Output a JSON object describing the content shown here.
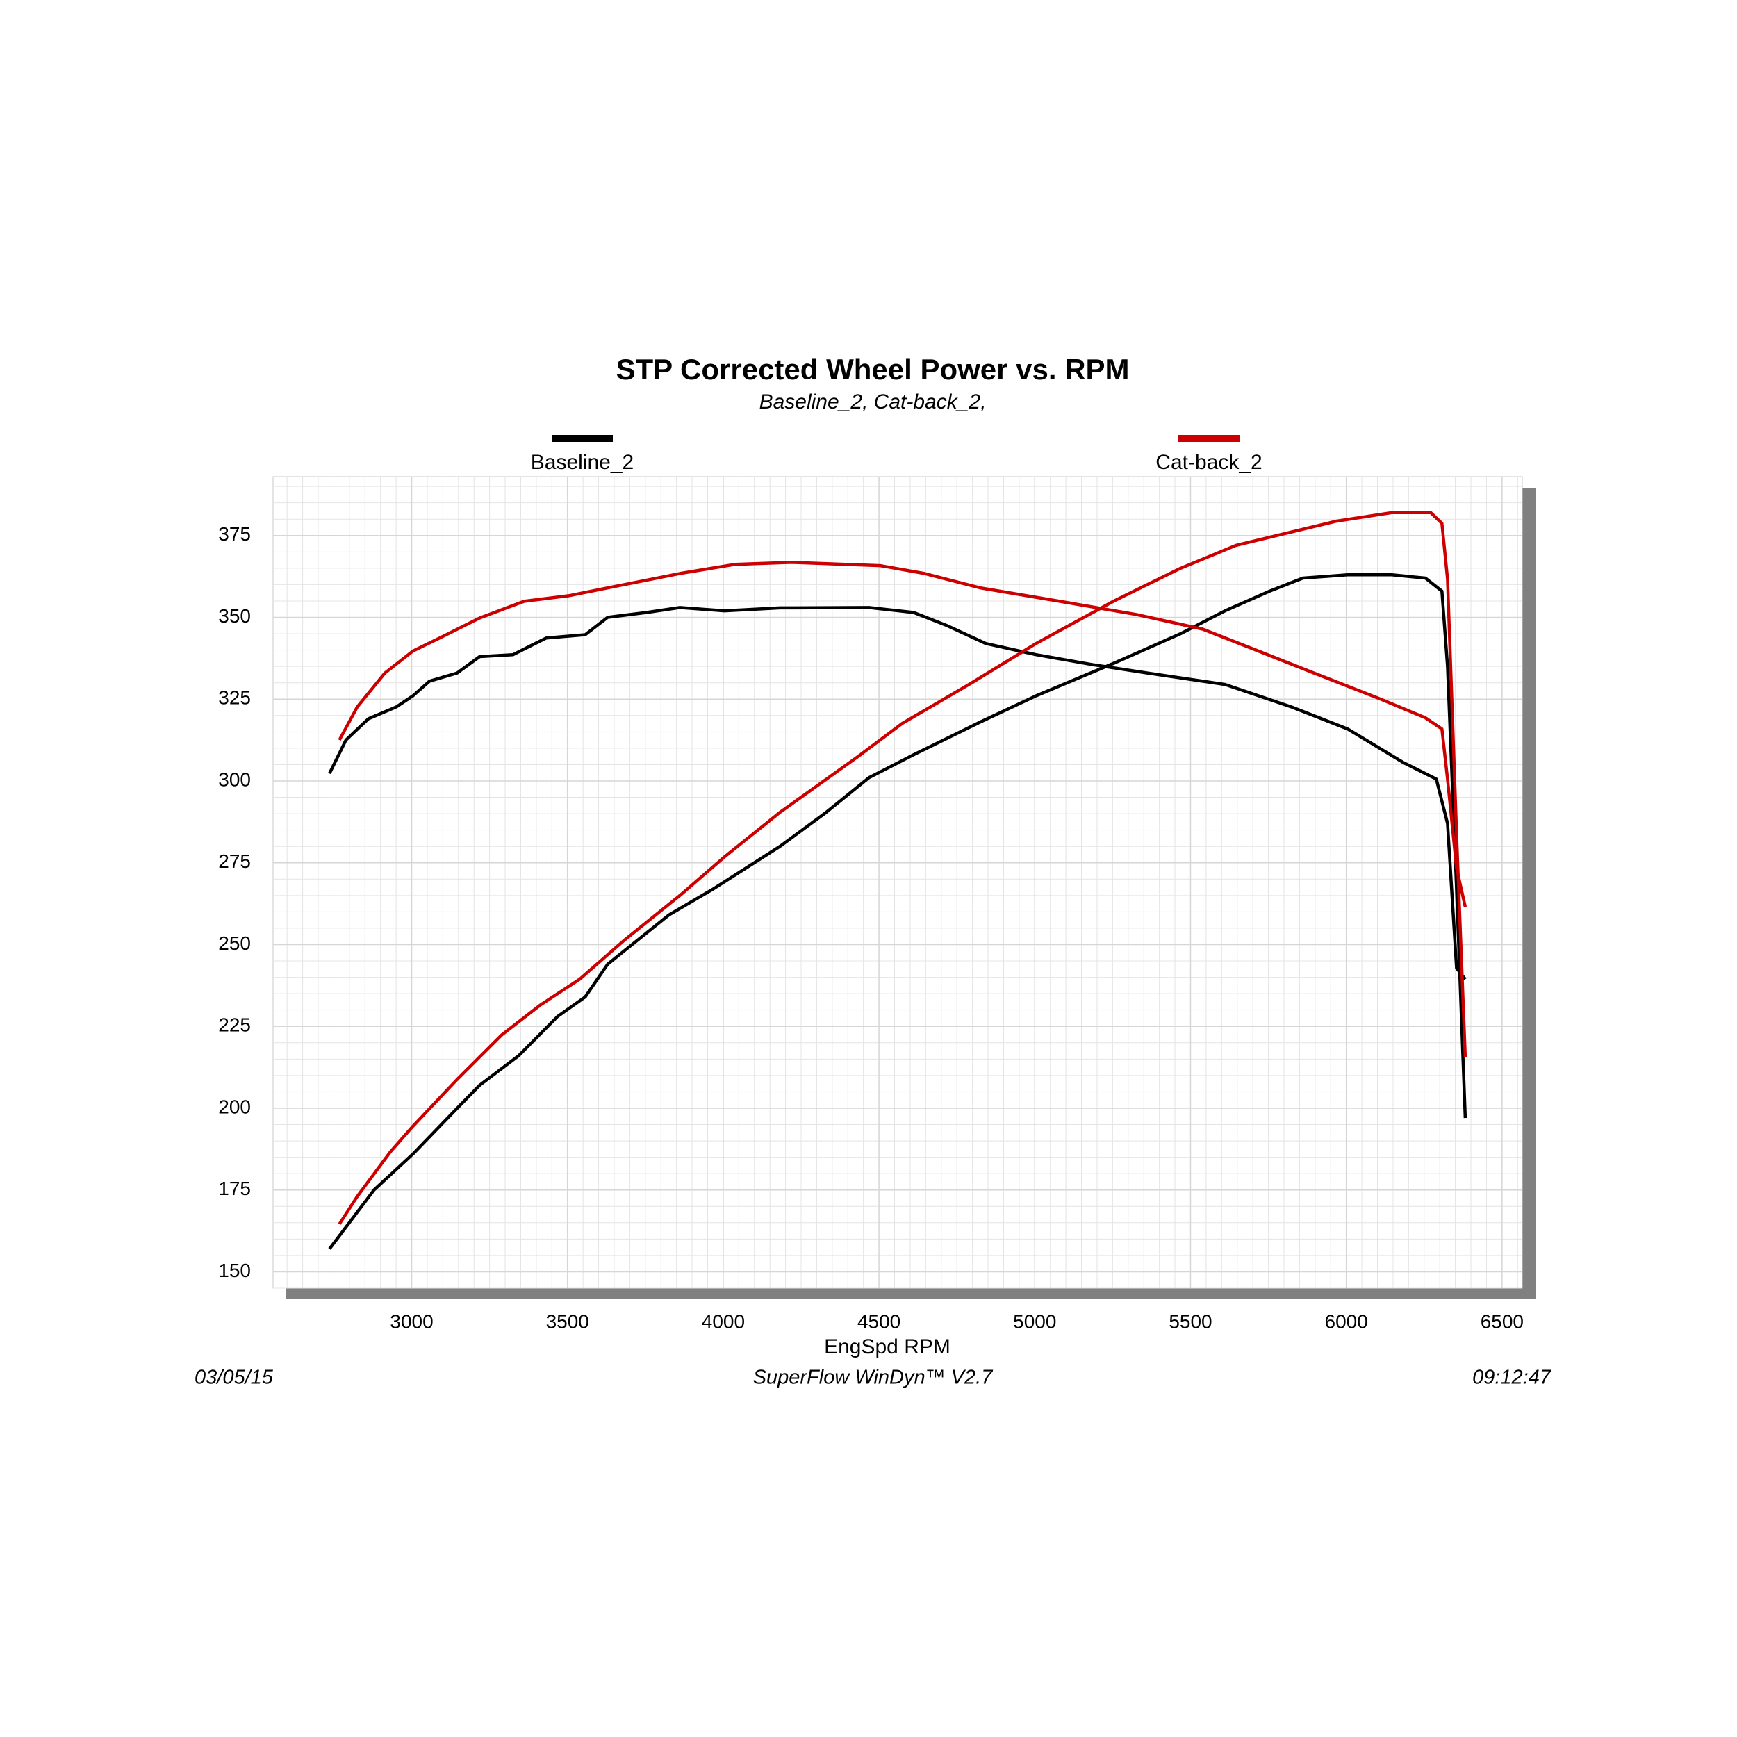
{
  "chart_data": {
    "type": "line",
    "title": "STP Corrected Wheel Power vs. RPM",
    "subtitle": "Baseline_2, Cat-back_2,",
    "x_label": "EngSpd RPM",
    "footer": {
      "date": "03/05/15",
      "software": "SuperFlow WinDyn™ V2.7",
      "time": "09:12:47"
    },
    "xlim": [
      2555,
      6565
    ],
    "ylim": [
      145,
      393
    ],
    "xticks": [
      3000,
      3500,
      4000,
      4500,
      5000,
      5500,
      6000,
      6500
    ],
    "yticks": [
      150,
      175,
      200,
      225,
      250,
      275,
      300,
      325,
      350,
      375
    ],
    "grid": true,
    "legend": "top",
    "series": [
      {
        "name": "Baseline_2",
        "color": "#000000",
        "lines": [
          {
            "x": [
              2736,
              2879,
              3004,
              3146,
              3218,
              3343,
              3468,
              3557,
              3629,
              3825,
              3968,
              4182,
              4325,
              4468,
              4611,
              4825,
              5004,
              5254,
              5468,
              5611,
              5754,
              5861,
              6004,
              6146,
              6254,
              6307,
              6325,
              6354,
              6382
            ],
            "values": [
              157,
              175,
              186,
              200,
              207,
              216,
              228,
              234,
              244,
              259,
              267,
              280,
              290,
              301,
              308,
              318,
              326,
              336,
              345,
              352,
              358,
              362,
              363,
              363,
              362,
              358,
              335,
              267,
              197
            ]
          },
          {
            "x": [
              2736,
              2789,
              2861,
              2950,
              3004,
              3057,
              3146,
              3218,
              3325,
              3432,
              3557,
              3629,
              3754,
              3861,
              4004,
              4182,
              4468,
              4611,
              4718,
              4843,
              5004,
              5182,
              5361,
              5611,
              5825,
              6004,
              6182,
              6289,
              6325,
              6354,
              6382
            ],
            "values": [
              302.3,
              312.5,
              319,
              322.6,
              326,
              330.5,
              333,
              338,
              338.6,
              343.7,
              344.7,
              350,
              351.5,
              353,
              352,
              352.9,
              353,
              351.5,
              347.5,
              342,
              338.6,
              335.6,
              333,
              329.5,
              322.6,
              315.9,
              305.7,
              300.6,
              287,
              242.8,
              239.4
            ]
          }
        ]
      },
      {
        "name": "Cat-back_2",
        "color": "#cc0000",
        "lines": [
          {
            "x": [
              2768,
              2825,
              2932,
              3004,
              3146,
              3289,
              3414,
              3539,
              3682,
              3861,
              4004,
              4182,
              4432,
              4575,
              4789,
              5004,
              5254,
              5468,
              5646,
              5789,
              5968,
              6146,
              6271,
              6307,
              6325,
              6354,
              6382
            ],
            "values": [
              164.6,
              173,
              186.7,
              194.5,
              208.8,
              222.4,
              231.6,
              239.4,
              251.3,
              265,
              276.8,
              290.4,
              307.4,
              317.6,
              329.5,
              342,
              355,
              365,
              372,
              375.3,
              379.4,
              382,
              382,
              378.7,
              361.7,
              283.6,
              215.6
            ]
          },
          {
            "x": [
              2768,
              2825,
              2914,
              3004,
              3111,
              3218,
              3361,
              3504,
              3682,
              3861,
              4039,
              4218,
              4504,
              4646,
              4825,
              5075,
              5325,
              5539,
              5718,
              5896,
              6111,
              6254,
              6307,
              6325,
              6354,
              6382
            ],
            "values": [
              312.5,
              322.6,
              333,
              339.7,
              344.7,
              349.8,
              354.9,
              356.6,
              360,
              363.4,
              366.2,
              366.8,
              365.8,
              363.4,
              359,
              355,
              350.9,
              346.4,
              339.7,
              333,
              325,
              319.3,
              315.9,
              300.6,
              273.4,
              261.5
            ]
          }
        ]
      }
    ]
  }
}
